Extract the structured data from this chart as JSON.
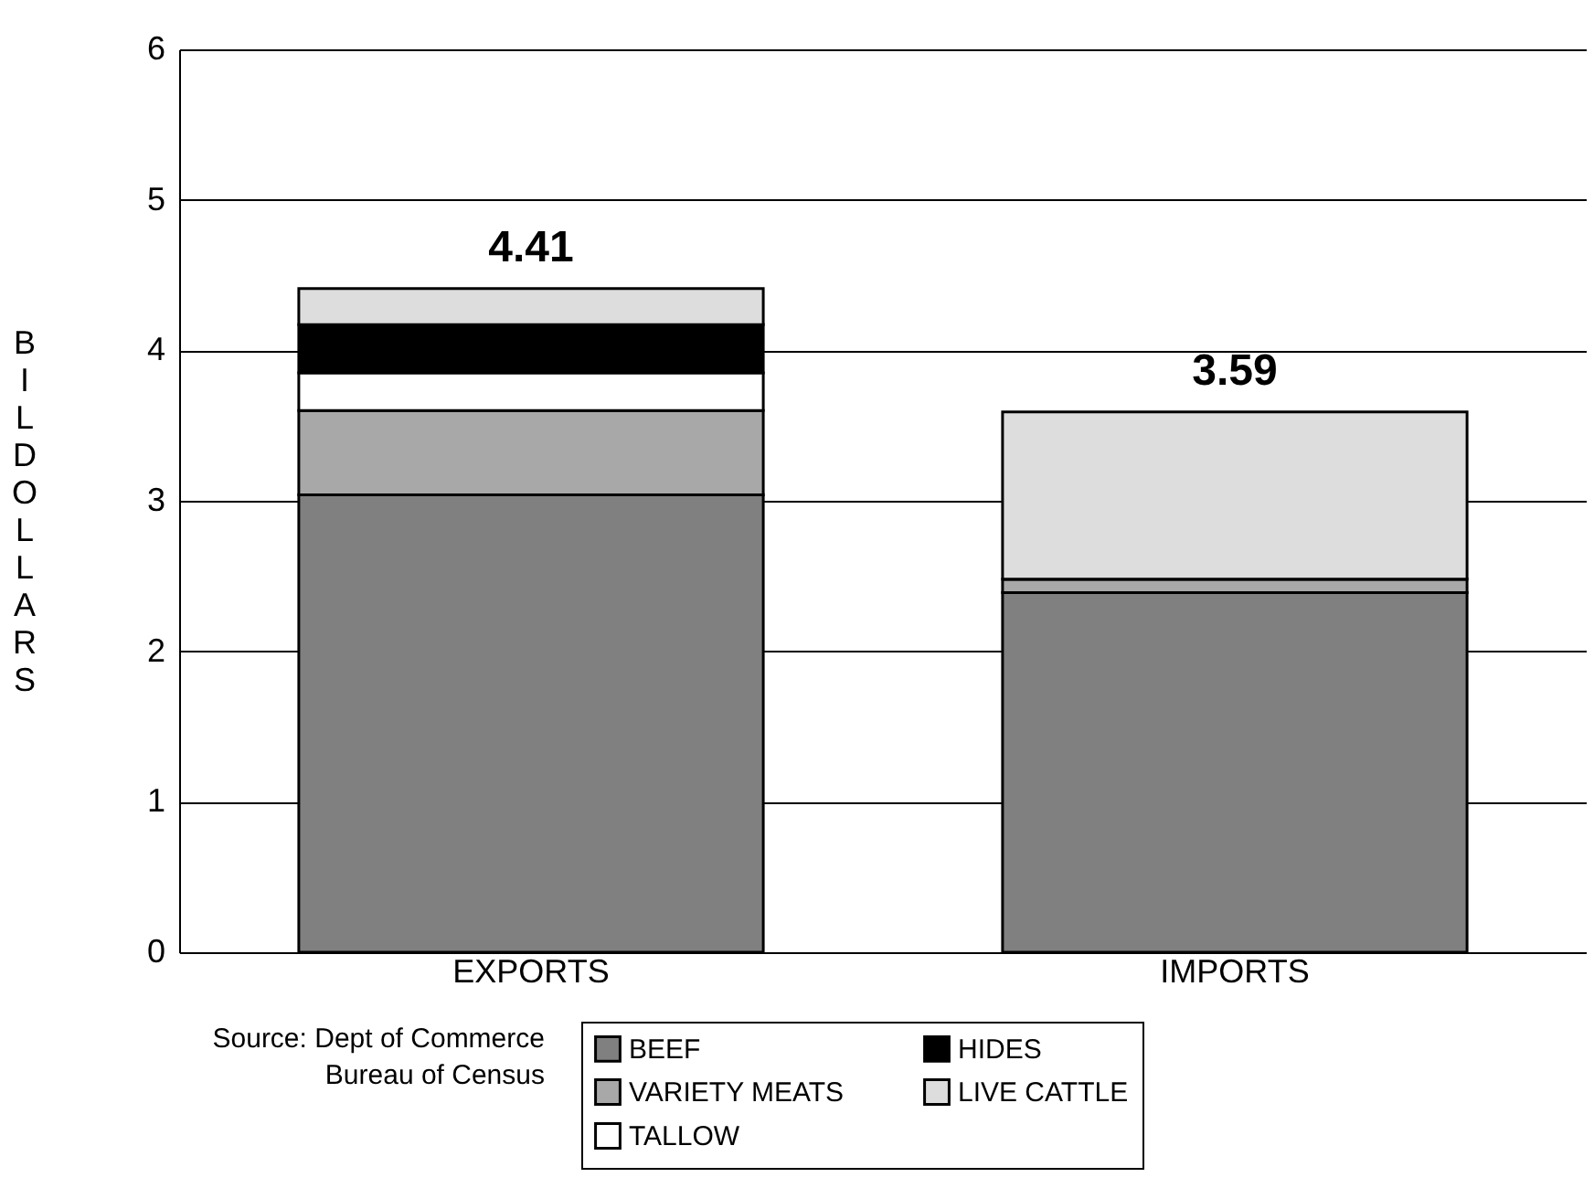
{
  "chart_data": {
    "type": "bar",
    "stacked": true,
    "ylabel": "BIL DOLLARS",
    "categories": [
      "EXPORTS",
      "IMPORTS"
    ],
    "series": [
      {
        "name": "BEEF",
        "color": "#808080",
        "values": [
          3.04,
          2.39
        ]
      },
      {
        "name": "VARIETY MEATS",
        "color": "#a8a8a8",
        "values": [
          0.56,
          0.09
        ]
      },
      {
        "name": "TALLOW",
        "color": "#ffffff",
        "values": [
          0.25,
          0.0
        ]
      },
      {
        "name": "HIDES",
        "color": "#000000",
        "values": [
          0.32,
          0.0
        ]
      },
      {
        "name": "LIVE CATTLE",
        "color": "#dddddd",
        "values": [
          0.24,
          1.11
        ]
      }
    ],
    "totals": [
      "4.41",
      "3.59"
    ],
    "ylim": [
      0,
      6
    ],
    "yticks": [
      0,
      1,
      2,
      3,
      4,
      5,
      6
    ],
    "grid": "y",
    "legend": "bottom",
    "annotations": [
      "Source: Dept of Commerce\nBureau of Census"
    ]
  }
}
